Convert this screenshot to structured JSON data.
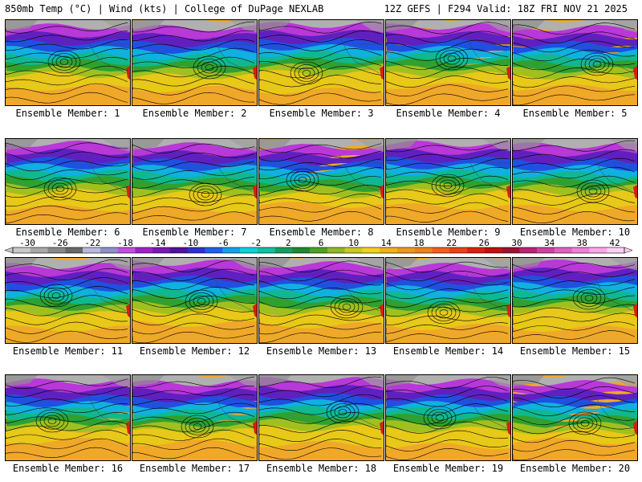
{
  "header": {
    "left": "850mb Temp (°C) | Wind (kts) | College of DuPage NEXLAB",
    "right": "12Z GEFS | F294 Valid: 18Z FRI NOV 21 2025"
  },
  "members": [
    "Ensemble Member: 1",
    "Ensemble Member: 2",
    "Ensemble Member: 3",
    "Ensemble Member: 4",
    "Ensemble Member: 5",
    "Ensemble Member: 6",
    "Ensemble Member: 7",
    "Ensemble Member: 8",
    "Ensemble Member: 9",
    "Ensemble Member: 10",
    "Ensemble Member: 11",
    "Ensemble Member: 12",
    "Ensemble Member: 13",
    "Ensemble Member: 14",
    "Ensemble Member: 15",
    "Ensemble Member: 16",
    "Ensemble Member: 17",
    "Ensemble Member: 18",
    "Ensemble Member: 19",
    "Ensemble Member: 20"
  ],
  "colorbar": {
    "ticks": [
      "-30",
      "-26",
      "-22",
      "-18",
      "-14",
      "-10",
      "-6",
      "-2",
      "2",
      "6",
      "10",
      "14",
      "18",
      "22",
      "26",
      "30",
      "34",
      "38",
      "42"
    ],
    "colors": [
      "#c8c8c8",
      "#a8a8a8",
      "#888888",
      "#686868",
      "#b8b8e0",
      "#9090c8",
      "#c050e0",
      "#a020d0",
      "#7818b8",
      "#5010a0",
      "#3030d0",
      "#2060e8",
      "#10a0f0",
      "#10d0d8",
      "#10c0a0",
      "#10a060",
      "#208830",
      "#50a020",
      "#90b820",
      "#c8c820",
      "#f0d020",
      "#f0b020",
      "#f09818",
      "#f08018",
      "#f06018",
      "#e84018",
      "#d82010",
      "#c01010",
      "#a01030",
      "#c02070",
      "#d040a0",
      "#e060c0",
      "#f080d8",
      "#f8a8e8",
      "#fcd0f4"
    ]
  }
}
